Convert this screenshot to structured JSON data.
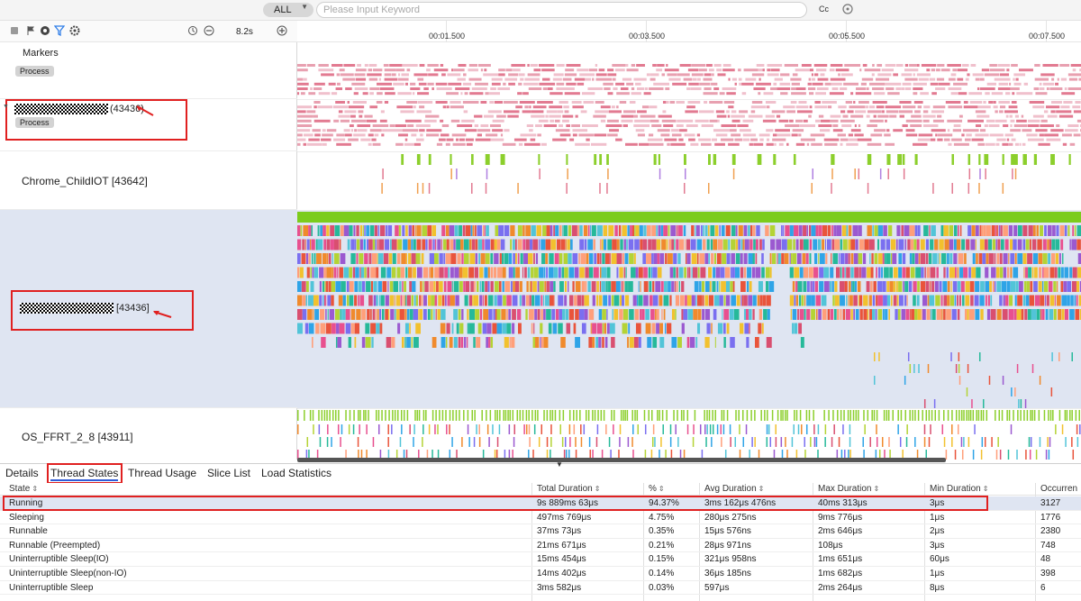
{
  "search": {
    "scope": "ALL",
    "placeholder": "Please Input Keyword",
    "case_toggle": "Cc"
  },
  "toolbar": {
    "zoom_label": "8.2s"
  },
  "ruler": {
    "ticks": [
      "00:01.500",
      "00:03.500",
      "00:05.500",
      "00:07.500"
    ]
  },
  "rows": {
    "markers": {
      "name": "Markers",
      "tag": "Process"
    },
    "process": {
      "pid": "(43436)",
      "tag": "Process"
    },
    "chrome": {
      "name": "Chrome_ChildIOT [43642]"
    },
    "main_thread": {
      "tid": "[43436]"
    },
    "ffrt": {
      "name": "OS_FFRT_2_8 [43911]"
    }
  },
  "tabs": [
    "Details",
    "Thread States",
    "Thread Usage",
    "Slice List",
    "Load Statistics"
  ],
  "active_tab": "Thread States",
  "table": {
    "headers": [
      "State",
      "Total Duration",
      "%",
      "Avg Duration",
      "Max Duration",
      "Min Duration",
      "Occurren"
    ],
    "rows": [
      [
        "Running",
        "9s 889ms 63μs",
        "94.37%",
        "3ms 162μs 476ns",
        "40ms 313μs",
        "3μs",
        "3127"
      ],
      [
        "Sleeping",
        "497ms 769μs",
        "4.75%",
        "280μs 275ns",
        "9ms 776μs",
        "1μs",
        "1776"
      ],
      [
        "Runnable",
        "37ms 73μs",
        "0.35%",
        "15μs 576ns",
        "2ms 646μs",
        "2μs",
        "2380"
      ],
      [
        "Runnable (Preempted)",
        "21ms 671μs",
        "0.21%",
        "28μs 971ns",
        "108μs",
        "3μs",
        "748"
      ],
      [
        "Uninterruptible Sleep(IO)",
        "15ms 454μs",
        "0.15%",
        "321μs 958ns",
        "1ms 651μs",
        "60μs",
        "48"
      ],
      [
        "Uninterruptible Sleep(non-IO)",
        "14ms 402μs",
        "0.14%",
        "36μs 185ns",
        "1ms 682μs",
        "1μs",
        "398"
      ],
      [
        "Uninterruptible Sleep",
        "3ms 582μs",
        "0.03%",
        "597μs",
        "2ms 264μs",
        "8μs",
        "6"
      ]
    ]
  },
  "colors": {
    "accent": "#2f5bd8",
    "highlight": "#e02020",
    "selected_row": "#dfe5f2",
    "running": "#7ccc1c"
  }
}
